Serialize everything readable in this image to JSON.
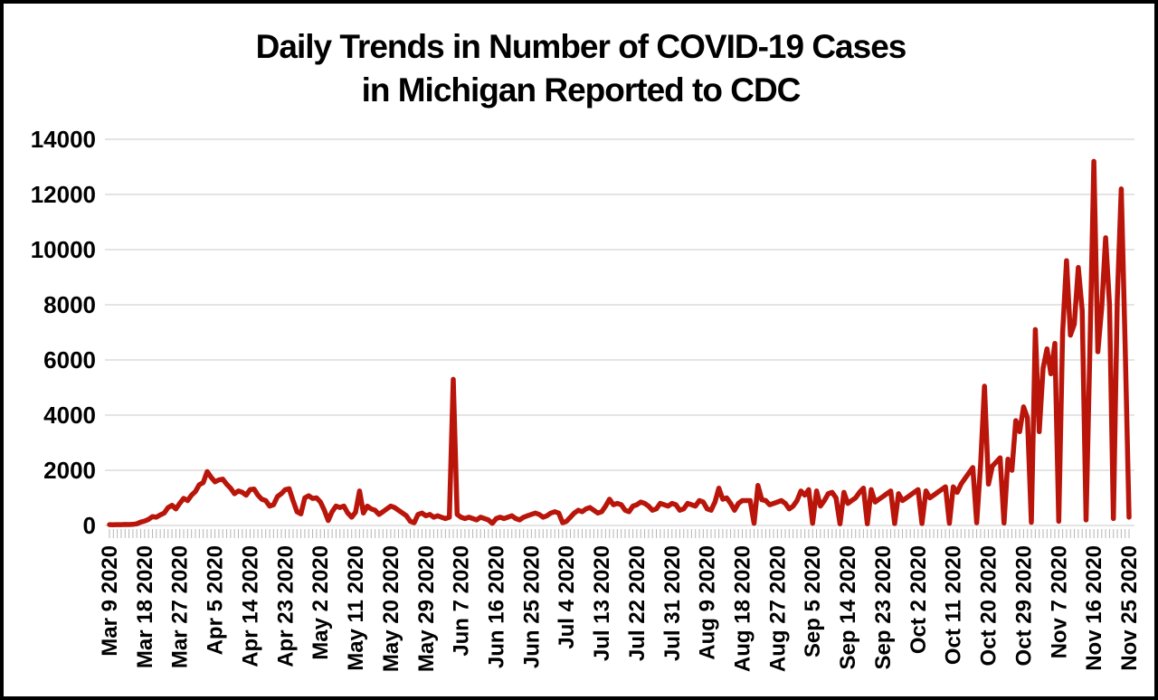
{
  "title": {
    "line1": "Daily Trends in Number of COVID-19 Cases",
    "line2": "in Michigan Reported to CDC"
  },
  "colors": {
    "line": "#b9150a",
    "grid": "#dcdcdc",
    "day_tick": "#b5b5b5",
    "text": "#000000",
    "frame": "#000000",
    "background": "#ffffff"
  },
  "chart_data": {
    "type": "line",
    "title": "Daily Trends in Number of COVID-19 Cases in Michigan Reported to CDC",
    "series_name": "Daily COVID-19 cases reported",
    "xlabel": "",
    "ylabel": "",
    "x_start": "Mar 9 2020",
    "x_end": "Nov 25 2020",
    "x_frequency": "daily",
    "x_tick_interval_days": 9,
    "x_tick_labels": [
      "Mar 9 2020",
      "Mar 18 2020",
      "Mar 27 2020",
      "Apr 5 2020",
      "Apr 14 2020",
      "Apr 23 2020",
      "May 2 2020",
      "May 11 2020",
      "May 20 2020",
      "May 29 2020",
      "Jun 7 2020",
      "Jun 16 2020",
      "Jun 25 2020",
      "Jul 4 2020",
      "Jul 13 2020",
      "Jul 22 2020",
      "Jul 31 2020",
      "Aug 9 2020",
      "Aug 18 2020",
      "Aug 27 2020",
      "Sep 5 2020",
      "Sep 14 2020",
      "Sep 23 2020",
      "Oct 2 2020",
      "Oct 11 2020",
      "Oct 20 2020",
      "Oct 29 2020",
      "Nov 7 2020",
      "Nov 16 2020",
      "Nov 25 2020"
    ],
    "ylim": [
      0,
      14000
    ],
    "yticks": [
      0,
      2000,
      4000,
      6000,
      8000,
      10000,
      12000,
      14000
    ],
    "grid": "horizontal",
    "legend": "none",
    "values": [
      30,
      25,
      30,
      28,
      35,
      32,
      40,
      60,
      120,
      160,
      220,
      320,
      300,
      380,
      450,
      650,
      730,
      600,
      800,
      980,
      900,
      1100,
      1230,
      1480,
      1550,
      1950,
      1750,
      1580,
      1650,
      1680,
      1500,
      1350,
      1150,
      1250,
      1200,
      1100,
      1300,
      1320,
      1100,
      950,
      900,
      700,
      750,
      1050,
      1150,
      1300,
      1330,
      900,
      500,
      420,
      1000,
      1080,
      980,
      1000,
      850,
      550,
      180,
      500,
      700,
      650,
      700,
      450,
      300,
      480,
      1250,
      450,
      700,
      600,
      550,
      400,
      500,
      600,
      700,
      650,
      550,
      450,
      350,
      150,
      100,
      400,
      450,
      350,
      400,
      300,
      350,
      300,
      250,
      300,
      5300,
      400,
      300,
      250,
      300,
      250,
      200,
      300,
      250,
      200,
      80,
      250,
      300,
      250,
      300,
      350,
      250,
      200,
      300,
      350,
      400,
      450,
      400,
      300,
      350,
      450,
      500,
      450,
      100,
      150,
      300,
      450,
      550,
      500,
      600,
      650,
      550,
      450,
      500,
      700,
      950,
      750,
      800,
      750,
      550,
      500,
      700,
      750,
      850,
      800,
      700,
      550,
      600,
      800,
      750,
      700,
      800,
      750,
      550,
      600,
      800,
      750,
      700,
      900,
      850,
      600,
      550,
      850,
      1350,
      950,
      1000,
      800,
      550,
      800,
      900,
      900,
      900,
      80,
      1450,
      930,
      900,
      750,
      800,
      850,
      900,
      800,
      600,
      700,
      900,
      1250,
      1100,
      1300,
      80,
      1250,
      700,
      900,
      1150,
      1200,
      1000,
      60,
      1200,
      800,
      900,
      1000,
      1200,
      1350,
      60,
      1300,
      850,
      950,
      1050,
      1150,
      1250,
      70,
      1150,
      900,
      1000,
      1100,
      1200,
      1300,
      70,
      1250,
      1000,
      1100,
      1200,
      1300,
      1400,
      80,
      1400,
      1200,
      1500,
      1700,
      1900,
      2100,
      100,
      2200,
      5050,
      1500,
      2150,
      2300,
      2450,
      90,
      2400,
      2000,
      3800,
      3400,
      4300,
      3900,
      110,
      7100,
      3400,
      5700,
      6400,
      5500,
      6600,
      150,
      7000,
      9600,
      6900,
      7300,
      9350,
      7800,
      200,
      6500,
      13200,
      6300,
      7900,
      10430,
      8000,
      250,
      8200,
      12200,
      6500,
      300
    ]
  }
}
